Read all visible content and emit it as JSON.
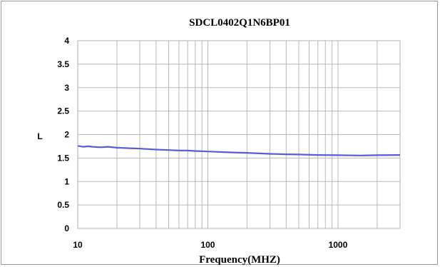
{
  "chart_data": {
    "type": "line",
    "title": "SDCL0402Q1N6BP01",
    "xlabel": "Frequency(MHZ)",
    "ylabel": "L",
    "x_scale": "log",
    "xlim": [
      10,
      3000
    ],
    "ylim": [
      0,
      4
    ],
    "y_ticks": [
      0,
      0.5,
      1,
      1.5,
      2,
      2.5,
      3,
      3.5,
      4
    ],
    "x_tick_labels": [
      "10",
      "100",
      "1000"
    ],
    "x_ticks": [
      10,
      100,
      1000
    ],
    "grid": true,
    "series": [
      {
        "name": "",
        "color": "#5b5bd6",
        "x": [
          10,
          11,
          12,
          13,
          15,
          17,
          20,
          25,
          30,
          40,
          50,
          60,
          70,
          80,
          100,
          150,
          200,
          300,
          400,
          500,
          700,
          1000,
          1500,
          2000,
          3000
        ],
        "y": [
          1.76,
          1.74,
          1.75,
          1.74,
          1.73,
          1.74,
          1.72,
          1.71,
          1.7,
          1.68,
          1.67,
          1.66,
          1.66,
          1.65,
          1.64,
          1.62,
          1.61,
          1.59,
          1.58,
          1.575,
          1.565,
          1.56,
          1.555,
          1.56,
          1.565
        ]
      }
    ]
  }
}
